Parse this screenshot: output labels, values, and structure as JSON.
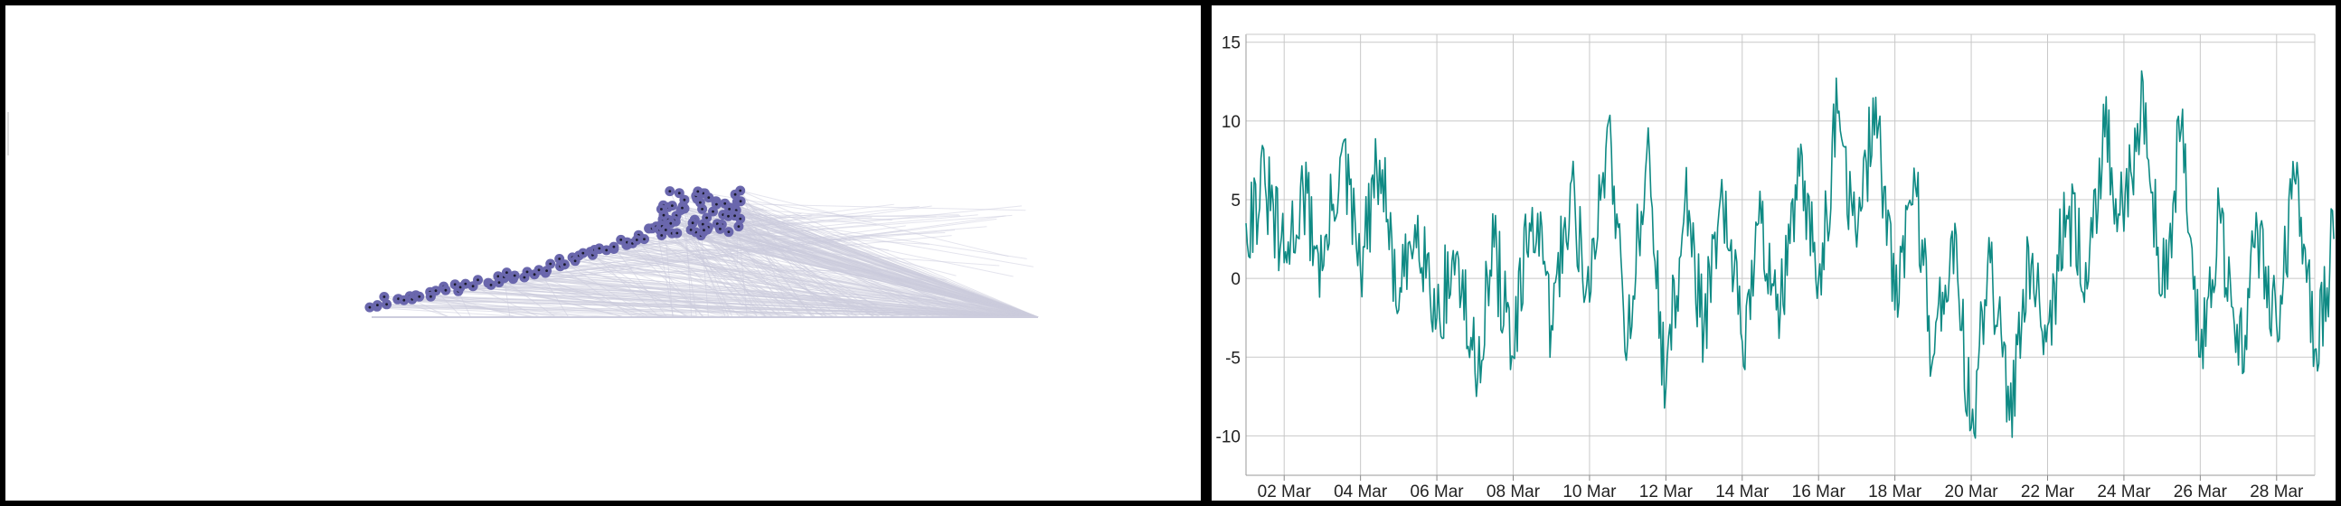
{
  "colors": {
    "frame": "#000000",
    "panel_bg": "#ffffff",
    "network_edge": "#ccccdd",
    "network_node": "#6a67ad",
    "network_node_dot": "#1a1a2a",
    "line": "#0f8a84",
    "grid": "#c8c8c8"
  },
  "network": {
    "description_none": "",
    "anchor_node_label": ""
  },
  "chart_data": {
    "type": "line",
    "title": "",
    "xlabel": "",
    "ylabel": "",
    "x_start": "2024-03-01",
    "x_end": "2024-03-29",
    "ylim": [
      -12.5,
      15.5
    ],
    "yticks": [
      15,
      10,
      5,
      0,
      -5,
      -10
    ],
    "ytick_labels": [
      "15",
      "10",
      "5",
      "0",
      "-5",
      "-10"
    ],
    "xtick_dates": [
      "2024-03-02",
      "2024-03-04",
      "2024-03-06",
      "2024-03-08",
      "2024-03-10",
      "2024-03-12",
      "2024-03-14",
      "2024-03-16",
      "2024-03-18",
      "2024-03-20",
      "2024-03-22",
      "2024-03-24",
      "2024-03-26",
      "2024-03-28"
    ],
    "xtick_labels": [
      "02 Mar",
      "04 Mar",
      "06 Mar",
      "08 Mar",
      "10 Mar",
      "12 Mar",
      "14 Mar",
      "16 Mar",
      "18 Mar",
      "20 Mar",
      "22 Mar",
      "24 Mar",
      "26 Mar",
      "28 Mar"
    ],
    "grid": true,
    "legend": "none",
    "series": [
      {
        "points": [
          [
            "2024-03-01",
            3.5
          ],
          [
            "2024-03-01",
            6
          ],
          [
            "2024-03-02",
            1
          ],
          [
            "2024-03-02",
            5.5
          ],
          [
            "2024-03-03",
            0.5
          ],
          [
            "2024-03-03",
            8
          ],
          [
            "2024-03-04",
            0.5
          ],
          [
            "2024-03-04",
            7.5
          ],
          [
            "2024-03-05",
            -2
          ],
          [
            "2024-03-05",
            4
          ],
          [
            "2024-03-06",
            -2.5
          ],
          [
            "2024-03-06",
            1.5
          ],
          [
            "2024-03-07",
            -6
          ],
          [
            "2024-03-07",
            2
          ],
          [
            "2024-03-08",
            -5
          ],
          [
            "2024-03-08",
            4.5
          ],
          [
            "2024-03-09",
            -3
          ],
          [
            "2024-03-09",
            6
          ],
          [
            "2024-03-10",
            -1.5
          ],
          [
            "2024-03-10",
            10
          ],
          [
            "2024-03-11",
            -4
          ],
          [
            "2024-03-11",
            8
          ],
          [
            "2024-03-12",
            -7
          ],
          [
            "2024-03-12",
            5
          ],
          [
            "2024-03-13",
            -3
          ],
          [
            "2024-03-13",
            4.5
          ],
          [
            "2024-03-14",
            -4
          ],
          [
            "2024-03-14",
            3.5
          ],
          [
            "2024-03-15",
            -2
          ],
          [
            "2024-03-15",
            6.5
          ],
          [
            "2024-03-16",
            0
          ],
          [
            "2024-03-16",
            10.5
          ],
          [
            "2024-03-17",
            2
          ],
          [
            "2024-03-17",
            11.5
          ],
          [
            "2024-03-18",
            -2
          ],
          [
            "2024-03-18",
            7
          ],
          [
            "2024-03-19",
            -5
          ],
          [
            "2024-03-19",
            3
          ],
          [
            "2024-03-20",
            -9.5
          ],
          [
            "2024-03-20",
            1
          ],
          [
            "2024-03-21",
            -9
          ],
          [
            "2024-03-21",
            2
          ],
          [
            "2024-03-22",
            -3
          ],
          [
            "2024-03-22",
            4
          ],
          [
            "2024-03-23",
            1
          ],
          [
            "2024-03-23",
            9
          ],
          [
            "2024-03-24",
            3
          ],
          [
            "2024-03-24",
            12.5
          ],
          [
            "2024-03-25",
            -1
          ],
          [
            "2024-03-25",
            9.5
          ],
          [
            "2024-03-26",
            -5
          ],
          [
            "2024-03-26",
            4.5
          ],
          [
            "2024-03-27",
            -5.5
          ],
          [
            "2024-03-27",
            3
          ],
          [
            "2024-03-28",
            -3
          ],
          [
            "2024-03-28",
            6
          ],
          [
            "2024-03-29",
            -4.5
          ],
          [
            "2024-03-29",
            2.5
          ]
        ]
      }
    ]
  }
}
